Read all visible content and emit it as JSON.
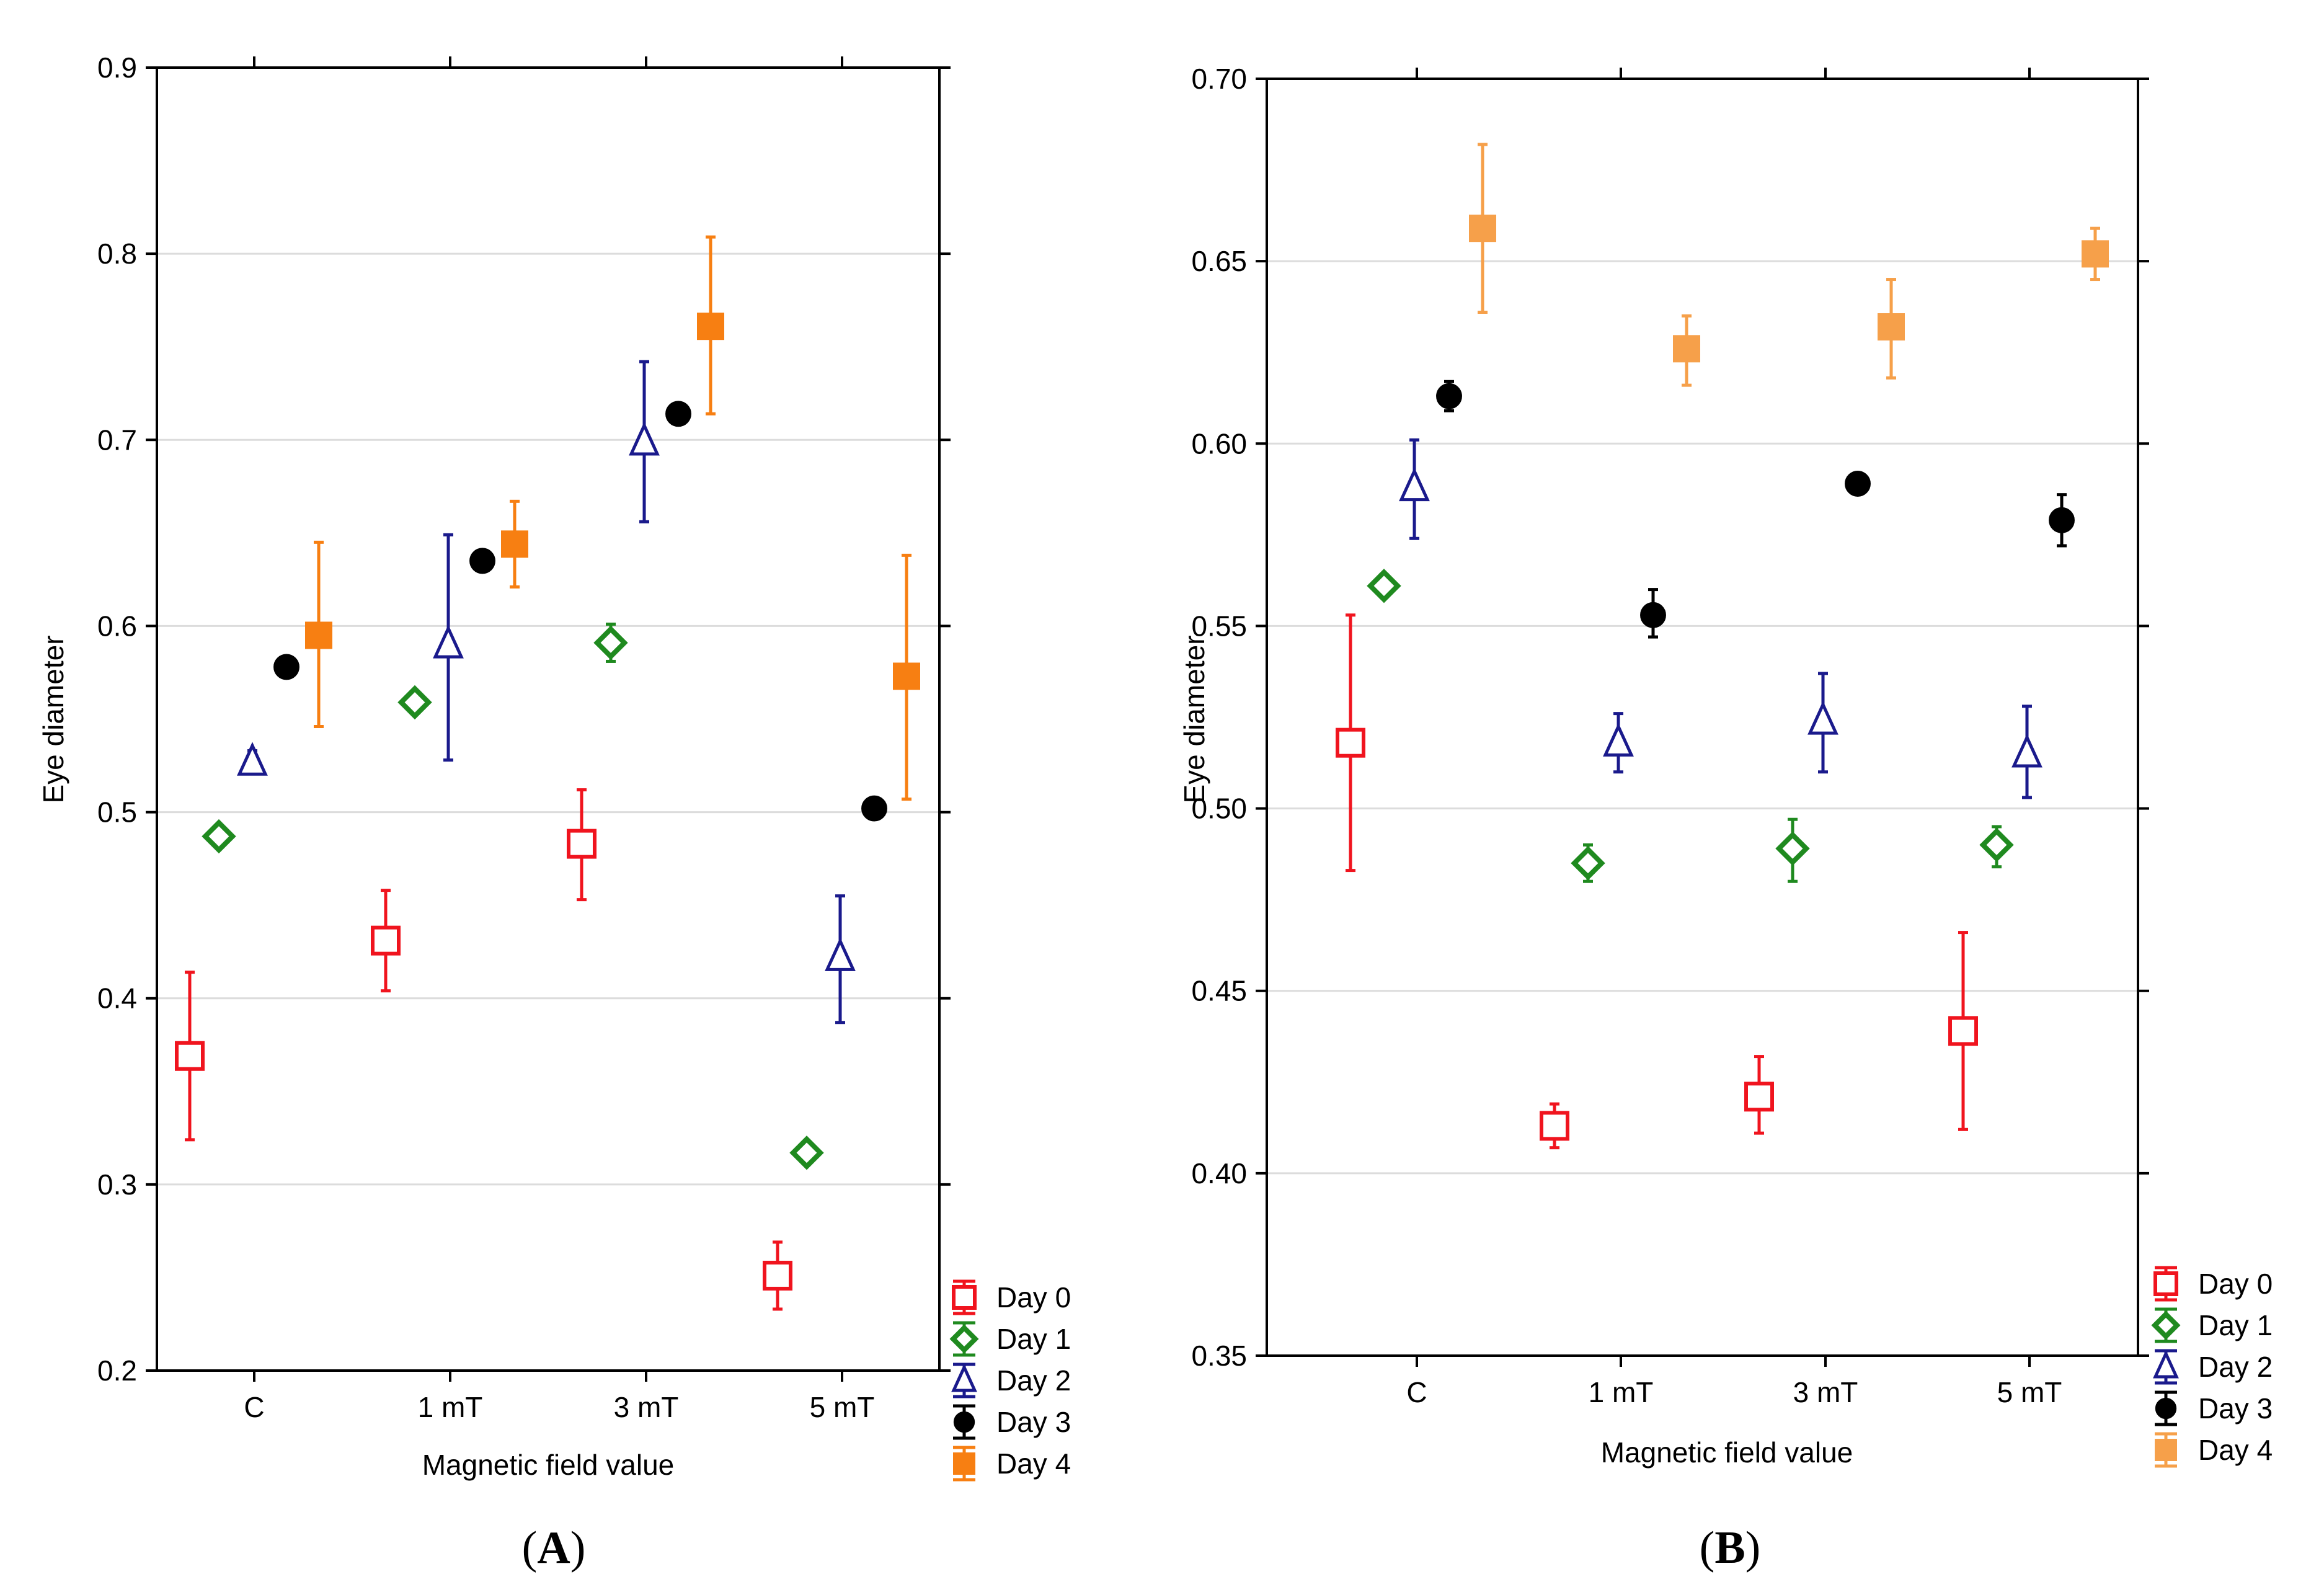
{
  "colors": {
    "Day 0": "#f0141e",
    "Day 1": "#1f8a1f",
    "Day 2": "#1a1a8c",
    "Day 3": "#000000",
    "Day 4A": "#f77f12",
    "Day 4B": "#f6a04a",
    "grid": "#dcdcdc"
  },
  "chart_data": [
    {
      "id": "A",
      "panel_label": "A",
      "type": "scatter",
      "xlabel": "Magnetic field value",
      "ylabel": "Eye diameter",
      "categories": [
        "C",
        "1 mT",
        "3 mT",
        "5 mT"
      ],
      "ylim": [
        0.2,
        0.9
      ],
      "yticks": [
        0.2,
        0.3,
        0.4,
        0.5,
        0.6,
        0.7,
        0.8,
        0.9
      ],
      "ytick_labels": [
        "0.2",
        "0.3",
        "0.4",
        "0.5",
        "0.6",
        "0.7",
        "0.8",
        "0.9"
      ],
      "grid": true,
      "legend_position": "bottom-right outside",
      "series": [
        {
          "name": "Day 0",
          "marker": "open-square",
          "color_key": "Day 0",
          "values": [
            0.369,
            0.431,
            0.483,
            0.251
          ],
          "err_low": [
            0.324,
            0.404,
            0.453,
            0.233
          ],
          "err_high": [
            0.414,
            0.458,
            0.512,
            0.269
          ]
        },
        {
          "name": "Day 1",
          "marker": "diamond",
          "color_key": "Day 1",
          "values": [
            0.487,
            0.559,
            0.591,
            0.317
          ],
          "err_low": [
            0.483,
            0.555,
            0.581,
            0.313
          ],
          "err_high": [
            0.491,
            0.563,
            0.601,
            0.321
          ]
        },
        {
          "name": "Day 2",
          "marker": "open-triangle",
          "color_key": "Day 2",
          "values": [
            0.527,
            0.59,
            0.699,
            0.422
          ],
          "err_low": [
            0.521,
            0.528,
            0.656,
            0.387
          ],
          "err_high": [
            0.533,
            0.649,
            0.742,
            0.455
          ]
        },
        {
          "name": "Day 3",
          "marker": "circle",
          "color_key": "Day 3",
          "values": [
            0.578,
            0.635,
            0.714,
            0.502
          ],
          "err_low": [
            0.574,
            0.632,
            0.71,
            0.498
          ],
          "err_high": [
            0.582,
            0.638,
            0.718,
            0.507
          ]
        },
        {
          "name": "Day 4",
          "marker": "filled-square",
          "color_key": "Day 4A",
          "values": [
            0.595,
            0.644,
            0.761,
            0.573
          ],
          "err_low": [
            0.546,
            0.621,
            0.714,
            0.507
          ],
          "err_high": [
            0.645,
            0.667,
            0.809,
            0.638
          ]
        }
      ]
    },
    {
      "id": "B",
      "panel_label": "B",
      "type": "scatter",
      "xlabel": "Magnetic field value",
      "ylabel": "Eye diameter",
      "categories": [
        "C",
        "1 mT",
        "3 mT",
        "5 mT"
      ],
      "ylim": [
        0.35,
        0.7
      ],
      "yticks": [
        0.35,
        0.4,
        0.45,
        0.5,
        0.55,
        0.6,
        0.65,
        0.7
      ],
      "ytick_labels": [
        "0.35",
        "0.40",
        "0.45",
        "0.50",
        "0.55",
        "0.60",
        "0.65",
        "0.70"
      ],
      "grid": true,
      "legend_position": "bottom-right outside",
      "series": [
        {
          "name": "Day 0",
          "marker": "open-square",
          "color_key": "Day 0",
          "values": [
            0.518,
            0.413,
            0.421,
            0.439
          ],
          "err_low": [
            0.483,
            0.407,
            0.411,
            0.412
          ],
          "err_high": [
            0.553,
            0.419,
            0.432,
            0.466
          ]
        },
        {
          "name": "Day 1",
          "marker": "diamond",
          "color_key": "Day 1",
          "values": [
            0.561,
            0.485,
            0.489,
            0.49
          ],
          "err_low": [
            0.558,
            0.48,
            0.48,
            0.484
          ],
          "err_high": [
            0.564,
            0.49,
            0.497,
            0.495
          ]
        },
        {
          "name": "Day 2",
          "marker": "open-triangle",
          "color_key": "Day 2",
          "values": [
            0.588,
            0.518,
            0.524,
            0.515
          ],
          "err_low": [
            0.574,
            0.51,
            0.51,
            0.503
          ],
          "err_high": [
            0.601,
            0.526,
            0.537,
            0.528
          ]
        },
        {
          "name": "Day 3",
          "marker": "circle",
          "color_key": "Day 3",
          "values": [
            0.613,
            0.553,
            0.589,
            0.579
          ],
          "err_low": [
            0.609,
            0.547,
            0.587,
            0.572
          ],
          "err_high": [
            0.617,
            0.56,
            0.591,
            0.586
          ]
        },
        {
          "name": "Day 4",
          "marker": "filled-square",
          "color_key": "Day 4B",
          "values": [
            0.659,
            0.626,
            0.632,
            0.652
          ],
          "err_low": [
            0.636,
            0.616,
            0.618,
            0.645
          ],
          "err_high": [
            0.682,
            0.635,
            0.645,
            0.659
          ]
        }
      ]
    }
  ]
}
